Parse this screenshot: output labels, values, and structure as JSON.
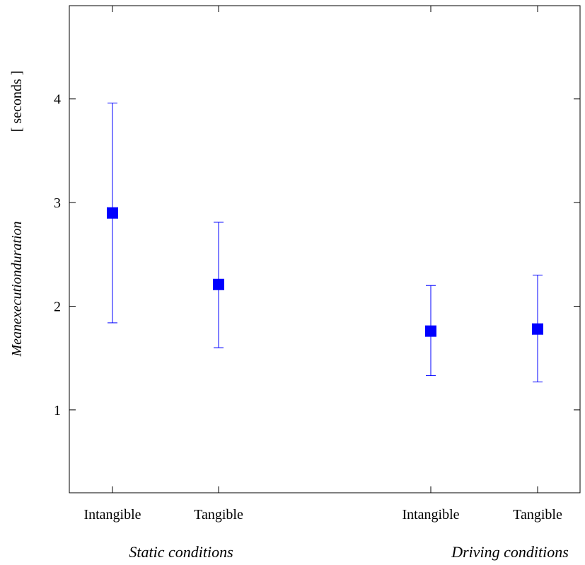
{
  "chart_data": {
    "type": "scatter",
    "categories": [
      "Intangible",
      "Tangible",
      "Intangible",
      "Tangible"
    ],
    "groups": [
      "Static conditions",
      "Driving conditions"
    ],
    "ylabel": "Meanexecutionduration",
    "yunit": "[ seconds ]",
    "ylim": [
      0.2,
      4.9
    ],
    "yticks": [
      1,
      2,
      3,
      4
    ],
    "grid": false,
    "marker_color": "#0000ff",
    "series": [
      {
        "points": [
          {
            "category": "Intangible",
            "group": "Static conditions",
            "mean": 2.9,
            "low": 1.84,
            "high": 3.96
          },
          {
            "category": "Tangible",
            "group": "Static conditions",
            "mean": 2.21,
            "low": 1.6,
            "high": 2.81
          },
          {
            "category": "Intangible",
            "group": "Driving conditions",
            "mean": 1.76,
            "low": 1.33,
            "high": 2.2
          },
          {
            "category": "Tangible",
            "group": "Driving conditions",
            "mean": 1.78,
            "low": 1.27,
            "high": 2.3
          }
        ]
      }
    ]
  }
}
